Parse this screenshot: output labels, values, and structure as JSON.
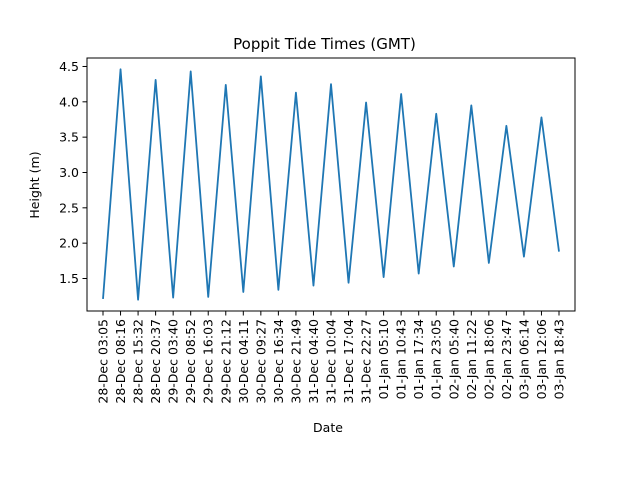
{
  "chart_data": {
    "type": "line",
    "title": "Poppit Tide Times (GMT)",
    "xlabel": "Date",
    "ylabel": "Height (m)",
    "x": [
      "28-Dec 03:05",
      "28-Dec 08:16",
      "28-Dec 15:32",
      "28-Dec 20:37",
      "29-Dec 03:40",
      "29-Dec 08:52",
      "29-Dec 16:03",
      "29-Dec 21:12",
      "30-Dec 04:11",
      "30-Dec 09:27",
      "30-Dec 16:34",
      "30-Dec 21:49",
      "31-Dec 04:40",
      "31-Dec 10:04",
      "31-Dec 17:04",
      "31-Dec 22:27",
      "01-Jan 05:10",
      "01-Jan 10:43",
      "01-Jan 17:34",
      "01-Jan 23:05",
      "02-Jan 05:40",
      "02-Jan 11:22",
      "02-Jan 18:06",
      "02-Jan 23:47",
      "03-Jan 06:14",
      "03-Jan 12:06",
      "03-Jan 18:43"
    ],
    "series": [
      {
        "values": [
          1.21,
          4.46,
          1.2,
          4.31,
          1.23,
          4.43,
          1.24,
          4.24,
          1.31,
          4.36,
          1.34,
          4.13,
          1.4,
          4.25,
          1.44,
          3.99,
          1.52,
          4.11,
          1.57,
          3.83,
          1.67,
          3.95,
          1.72,
          3.66,
          1.81,
          3.78,
          1.88
        ],
        "color": "#1f77b4"
      }
    ],
    "yticks": [
      "1.5",
      "2.0",
      "2.5",
      "3.0",
      "3.5",
      "4.0",
      "4.5"
    ],
    "ylim": [
      1.04,
      4.62
    ],
    "grid": false,
    "legend": "none"
  }
}
